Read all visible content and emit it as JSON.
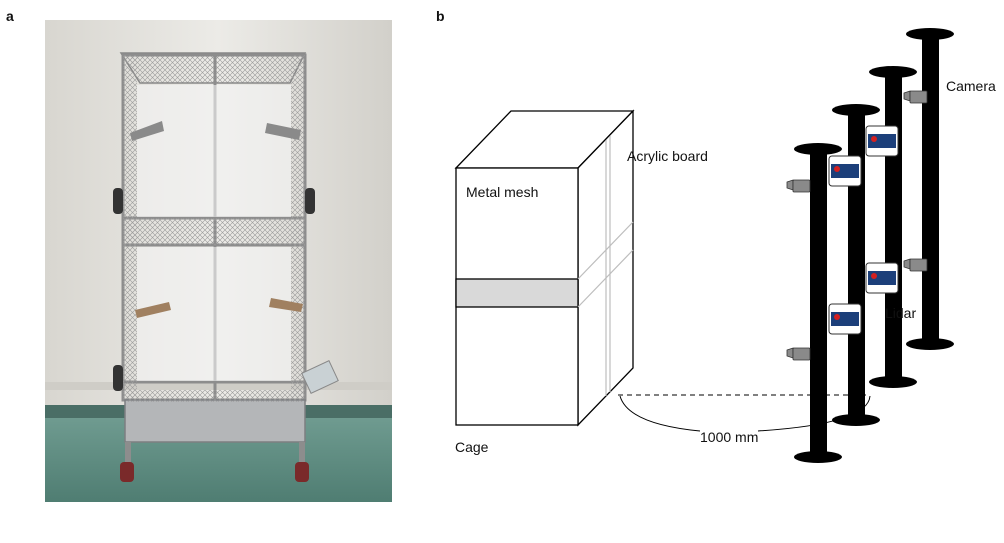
{
  "panels": {
    "a": "a",
    "b": "b"
  },
  "labels": {
    "metal_mesh": "Metal mesh",
    "acrylic_board": "Acrylic board",
    "cage": "Cage",
    "camera": "Camera",
    "lidar": "Lidar",
    "distance": "1000 mm"
  },
  "colors": {
    "pole": "#000000",
    "shelf_band": "#d9d9d9",
    "lidar_body": "#1c3f7a",
    "lidar_dot": "#d42020",
    "camera_body": "#8a8a8a",
    "wall": "#e6e4df",
    "floor": "#5f8f84"
  }
}
